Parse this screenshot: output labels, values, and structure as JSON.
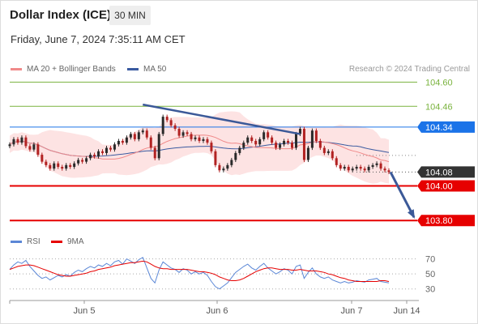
{
  "header": {
    "title": "Dollar Index (ICE)",
    "timeframe": "30 MIN",
    "datetime": "Friday, June 7, 2024 7:35:11 AM CET"
  },
  "legend": {
    "ma20_label": "MA 20 + Bollinger Bands",
    "ma50_label": "MA 50",
    "credit": "Research © 2024 Trading Central",
    "rsi_label": "RSI",
    "ma9_label": "9MA"
  },
  "colors": {
    "ma20": "#f08a8a",
    "ma50": "#3a5aa0",
    "bollinger_fill": "#fde3e3",
    "resistance_green": "#7ab33e",
    "level_blue": "#1b73e8",
    "support_red": "#e60000",
    "current_price": "#333333",
    "trendline": "#3b5998",
    "candle_up": "#2a2a2a",
    "candle_down": "#b22222",
    "rsi": "#5b87d6",
    "ma9": "#e60000"
  },
  "chart_data": {
    "type": "candlestick",
    "price_range": [
      103.74,
      104.63
    ],
    "levels": [
      {
        "value": 104.6,
        "label": "104.60",
        "style": "green"
      },
      {
        "value": 104.46,
        "label": "104.46",
        "style": "green"
      },
      {
        "value": 104.34,
        "label": "104.34",
        "style": "blue"
      },
      {
        "value": 104.08,
        "label": "104.08",
        "style": "current"
      },
      {
        "value": 104.0,
        "label": "104.00",
        "style": "red"
      },
      {
        "value": 103.8,
        "label": "103.80",
        "style": "red"
      }
    ],
    "x_ticks": [
      "Jun 5",
      "Jun 6",
      "Jun 7",
      "Jun 14"
    ],
    "candles_close": [
      104.24,
      104.27,
      104.25,
      104.28,
      104.23,
      104.21,
      104.24,
      104.18,
      104.14,
      104.12,
      104.1,
      104.13,
      104.11,
      104.1,
      104.12,
      104.11,
      104.13,
      104.15,
      104.14,
      104.16,
      104.18,
      104.17,
      104.2,
      104.19,
      104.22,
      104.21,
      104.24,
      104.26,
      104.25,
      104.28,
      104.3,
      104.27,
      104.31,
      104.32,
      104.28,
      104.22,
      104.16,
      104.3,
      104.4,
      104.38,
      104.35,
      104.33,
      104.29,
      104.31,
      104.3,
      104.27,
      104.28,
      104.26,
      104.27,
      104.25,
      104.2,
      104.12,
      104.09,
      104.1,
      104.12,
      104.15,
      104.19,
      104.22,
      104.25,
      104.28,
      104.26,
      104.24,
      104.27,
      104.31,
      104.28,
      104.25,
      104.22,
      104.24,
      104.26,
      104.25,
      104.22,
      104.3,
      104.33,
      104.15,
      104.22,
      104.32,
      104.26,
      104.22,
      104.19,
      104.2,
      104.16,
      104.12,
      104.1,
      104.11,
      104.09,
      104.1,
      104.11,
      104.1,
      104.09,
      104.11,
      104.12,
      104.13,
      104.1,
      104.09,
      104.08
    ],
    "trendline": {
      "start_index": 33,
      "start_value": 104.47,
      "end_index": 72,
      "end_value": 104.3
    },
    "projection": {
      "from_value": 104.08,
      "to_value": 103.8
    },
    "rsi": {
      "range": [
        20,
        75
      ],
      "ticks": [
        70,
        50,
        30
      ],
      "rsi_values": [
        56,
        62,
        66,
        64,
        68,
        60,
        54,
        48,
        44,
        46,
        42,
        45,
        48,
        46,
        49,
        47,
        52,
        55,
        53,
        57,
        60,
        58,
        62,
        60,
        64,
        61,
        66,
        68,
        63,
        70,
        67,
        64,
        69,
        72,
        58,
        44,
        38,
        55,
        66,
        62,
        58,
        56,
        52,
        57,
        55,
        50,
        53,
        50,
        52,
        48,
        40,
        33,
        30,
        34,
        38,
        45,
        52,
        56,
        60,
        63,
        58,
        55,
        60,
        64,
        58,
        54,
        50,
        53,
        57,
        55,
        50,
        60,
        62,
        44,
        52,
        58,
        50,
        46,
        44,
        46,
        42,
        40,
        38,
        40,
        38,
        39,
        41,
        40,
        39,
        42,
        43,
        44,
        40,
        39,
        38
      ],
      "ma9_values": [
        56,
        58,
        60,
        61,
        62,
        62,
        61,
        59,
        57,
        55,
        53,
        51,
        49,
        48,
        47,
        47,
        48,
        49,
        50,
        51,
        53,
        54,
        56,
        57,
        58,
        59,
        61,
        62,
        63,
        64,
        65,
        65,
        66,
        67,
        66,
        63,
        60,
        58,
        57,
        57,
        56,
        56,
        56,
        56,
        56,
        55,
        54,
        53,
        53,
        52,
        51,
        49,
        46,
        44,
        42,
        41,
        41,
        42,
        44,
        47,
        50,
        53,
        55,
        57,
        58,
        58,
        57,
        56,
        56,
        56,
        55,
        55,
        56,
        55,
        54,
        54,
        54,
        53,
        52,
        50,
        49,
        47,
        45,
        44,
        42,
        41,
        40,
        40,
        40,
        40,
        40,
        40,
        41,
        41,
        40
      ]
    }
  }
}
